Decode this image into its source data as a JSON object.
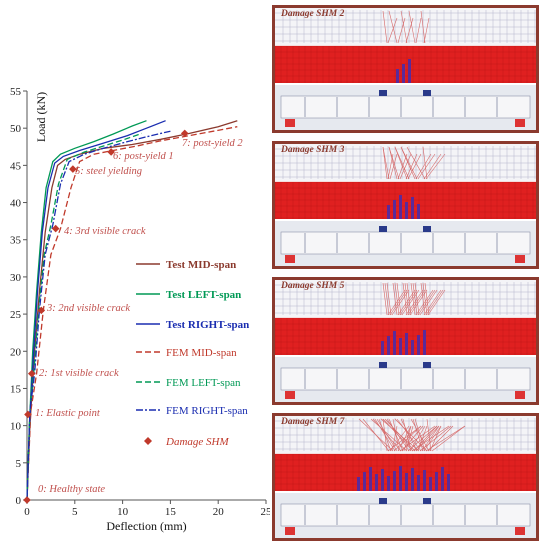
{
  "chart_data": {
    "type": "line",
    "xlabel": "Deflection (mm)",
    "ylabel": "Load (kN)",
    "xlim": [
      0,
      25
    ],
    "ylim": [
      0,
      55
    ],
    "xticks": [
      0,
      5,
      10,
      15,
      20,
      25
    ],
    "yticks": [
      0,
      5,
      10,
      15,
      20,
      25,
      30,
      35,
      40,
      45,
      50,
      55
    ],
    "grid": false,
    "legend_position": "right",
    "series": [
      {
        "name": "Test MID-span",
        "color": "#8b3a2e",
        "style": "solid",
        "x": [
          0,
          0.3,
          0.8,
          1.3,
          1.9,
          2.6,
          3.2,
          4.0,
          5.5,
          8.0,
          11.0,
          14.0,
          17.0,
          20.0,
          22.0
        ],
        "y": [
          0,
          10,
          20,
          28,
          36,
          42,
          45,
          45.8,
          46.5,
          47.3,
          47.8,
          48.5,
          49.3,
          50.2,
          51.0
        ]
      },
      {
        "name": "Test LEFT-span",
        "color": "#009955",
        "style": "solid",
        "x": [
          0,
          0.25,
          0.6,
          1.0,
          1.5,
          2.0,
          2.7,
          3.5,
          5.0,
          7.0,
          9.0,
          11.0,
          12.5
        ],
        "y": [
          0,
          10,
          20,
          28,
          36,
          42,
          45.5,
          46.5,
          47.3,
          48.2,
          49.2,
          50.3,
          51.0
        ]
      },
      {
        "name": "Test RIGHT-span",
        "color": "#1a2db0",
        "style": "solid",
        "x": [
          0,
          0.25,
          0.7,
          1.1,
          1.6,
          2.2,
          2.9,
          3.8,
          5.5,
          8.0,
          10.5,
          12.5,
          14.5
        ],
        "y": [
          0,
          10,
          20,
          28,
          36,
          42,
          45.3,
          46.2,
          47.0,
          48.0,
          49.0,
          50.0,
          51.0
        ]
      },
      {
        "name": "FEM MID-span",
        "color": "#c0392b",
        "style": "dashed",
        "x": [
          0,
          0.4,
          1.0,
          1.7,
          2.5,
          3.5,
          4.6,
          5.5,
          7.0,
          9.0,
          11.5,
          14.0,
          17.0,
          19.5,
          22.0
        ],
        "y": [
          0,
          12,
          17,
          25.5,
          33,
          36.5,
          42,
          45.5,
          46.5,
          47.0,
          47.6,
          48.3,
          49.0,
          49.6,
          50.2
        ]
      },
      {
        "name": "FEM LEFT-span",
        "color": "#009955",
        "style": "dashed",
        "x": [
          0,
          0.3,
          0.7,
          1.2,
          1.8,
          2.5,
          3.3,
          4.2,
          6.0,
          8.0,
          10.0,
          12.0
        ],
        "y": [
          0,
          12,
          17,
          25.5,
          33,
          37,
          42.5,
          45.8,
          46.8,
          47.6,
          48.4,
          49.3
        ]
      },
      {
        "name": "FEM RIGHT-span",
        "color": "#1a2db0",
        "style": "dashdot",
        "x": [
          0,
          0.3,
          0.8,
          1.3,
          1.9,
          2.7,
          3.5,
          4.4,
          6.0,
          8.0,
          10.5,
          13.0,
          15.0
        ],
        "y": [
          0,
          12,
          17,
          25.5,
          33,
          37,
          42.5,
          45.5,
          46.5,
          47.3,
          48.2,
          49.0,
          49.6
        ]
      }
    ],
    "damage_points": {
      "name": "Damage SHM",
      "color": "#c0392b",
      "points": [
        {
          "x": 0,
          "y": 0,
          "label": "0: Healthy state"
        },
        {
          "x": 0.1,
          "y": 11.5,
          "label": "1: Elastic point"
        },
        {
          "x": 0.5,
          "y": 17,
          "label": "2: 1st visible crack"
        },
        {
          "x": 1.5,
          "y": 25.5,
          "label": "3: 2nd visible crack"
        },
        {
          "x": 3.0,
          "y": 36.5,
          "label": "4: 3rd visible crack"
        },
        {
          "x": 4.8,
          "y": 44.5,
          "label": "5: steel yielding"
        },
        {
          "x": 8.8,
          "y": 46.8,
          "label": "6: post-yield 1"
        },
        {
          "x": 16.5,
          "y": 49.3,
          "label": "7: post-yield 2"
        }
      ]
    }
  },
  "panels": [
    {
      "title": "Damage SHM 2"
    },
    {
      "title": "Damage SHM 3"
    },
    {
      "title": "Damage SHM 5"
    },
    {
      "title": "Damage SHM 7"
    }
  ],
  "colors": {
    "frame": "#8b3a2e",
    "mesh_red": "#e02020",
    "beam_blue": "#2a3a8a"
  }
}
